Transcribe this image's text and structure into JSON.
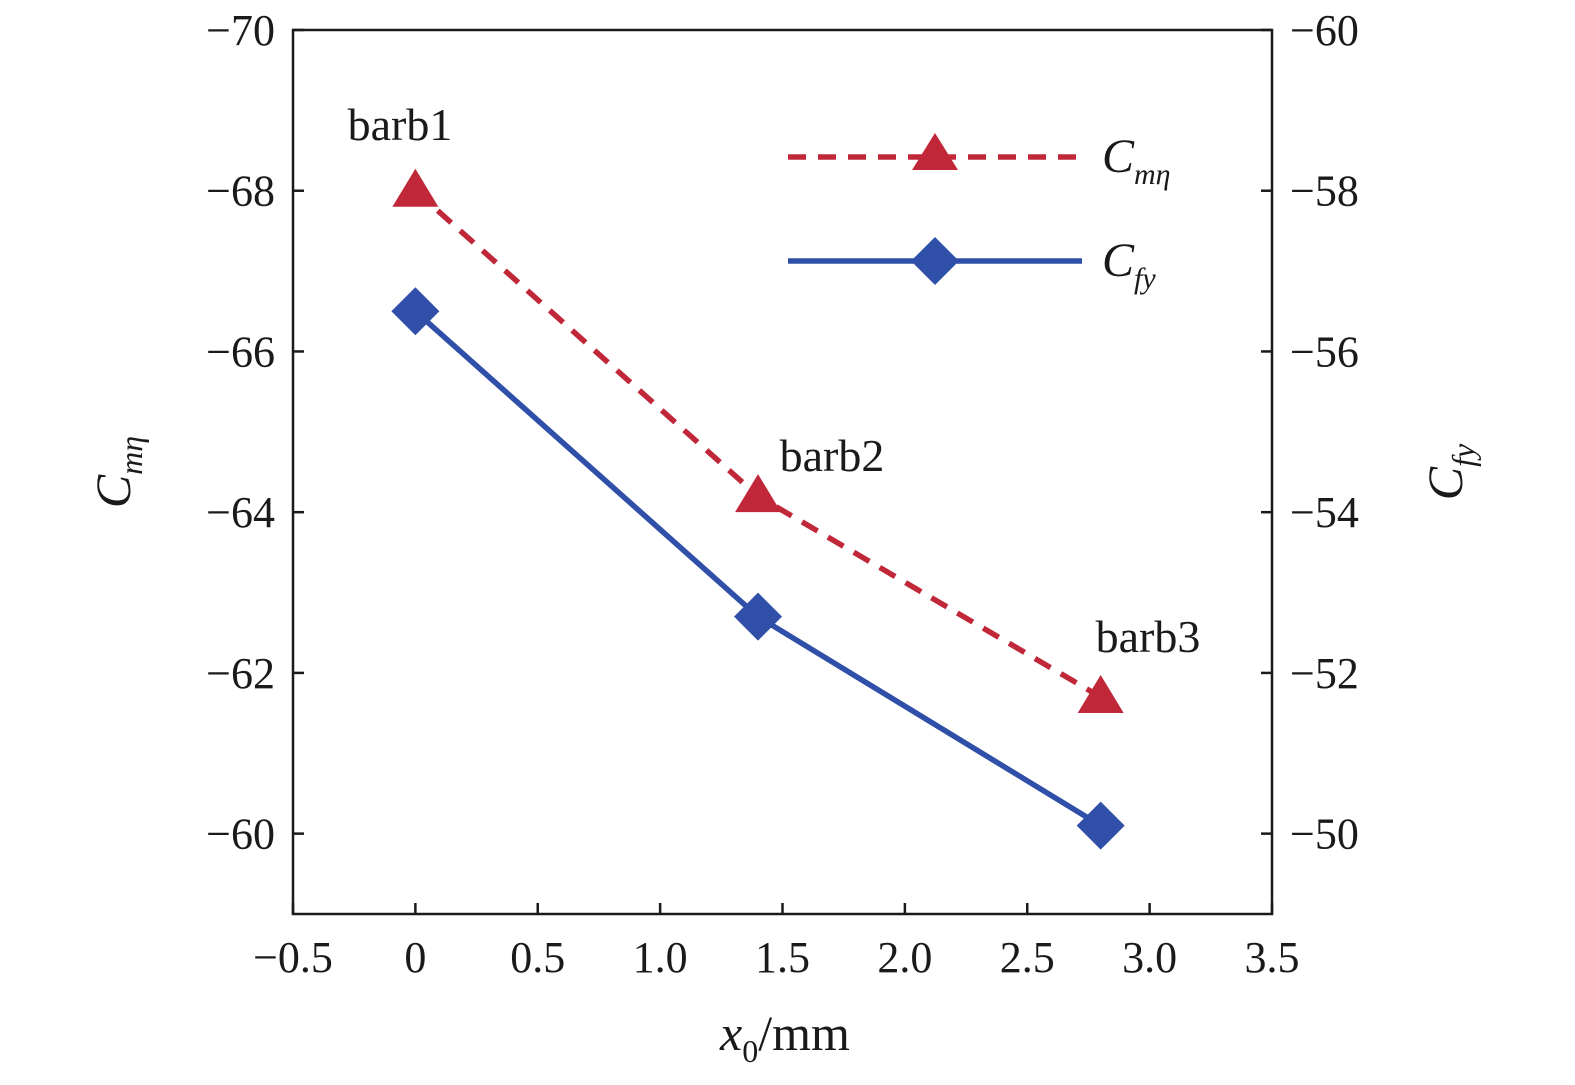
{
  "chart_data": {
    "type": "line",
    "x": [
      0,
      1.4,
      2.8
    ],
    "xlabel": {
      "main": "x",
      "sub": "0",
      "unit": "/mm"
    },
    "xlim": [
      -0.5,
      3.5
    ],
    "xticks": [
      "−0.5",
      "0",
      "0.5",
      "1.0",
      "1.5",
      "2.0",
      "2.5",
      "3.0",
      "3.5"
    ],
    "y_left": {
      "label": {
        "main": "C",
        "sub": "mη"
      },
      "lim": [
        -59,
        -70
      ],
      "ticks": [
        "−70",
        "−68",
        "−66",
        "−64",
        "−62",
        "−60"
      ]
    },
    "y_right": {
      "label": {
        "main": "C",
        "sub": "fy"
      },
      "lim": [
        -49,
        -60
      ],
      "ticks": [
        "−60",
        "−58",
        "−56",
        "−54",
        "−52",
        "−50"
      ]
    },
    "series": [
      {
        "name": "C_mη",
        "legend_main": "C",
        "legend_sub": "mη",
        "axis": "left",
        "values": [
          -68.0,
          -64.2,
          -61.7
        ],
        "color": "#c0283a",
        "line": "dashed",
        "marker": "triangle"
      },
      {
        "name": "C_fy",
        "legend_main": "C",
        "legend_sub": "fy",
        "axis": "right",
        "values": [
          -56.5,
          -52.7,
          -50.1
        ],
        "color": "#2f4fa8",
        "line": "solid",
        "marker": "diamond"
      }
    ],
    "annotations": [
      "barb1",
      "barb2",
      "barb3"
    ],
    "legend_position": "top-right",
    "grid": false
  }
}
